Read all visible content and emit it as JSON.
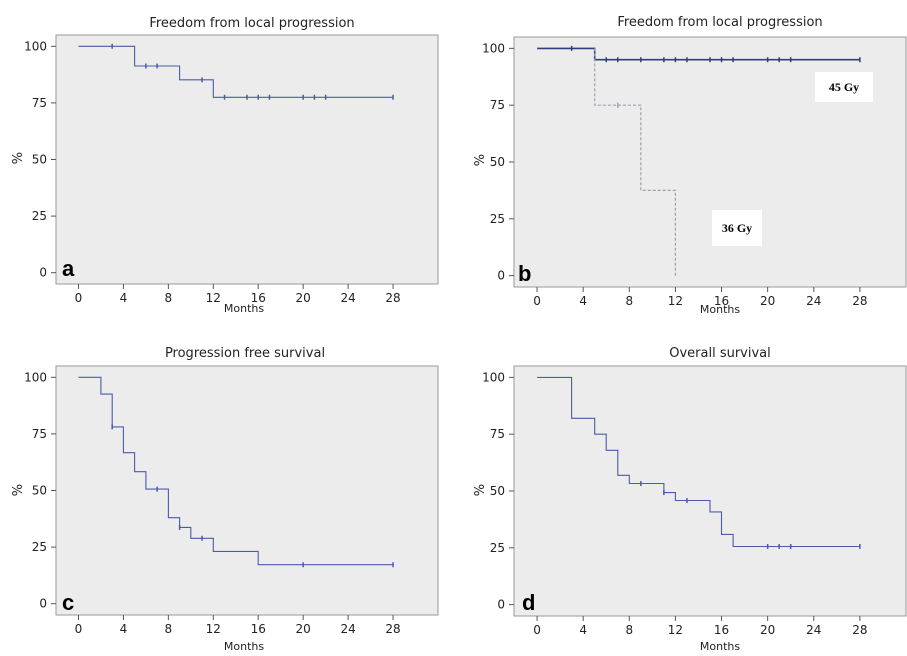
{
  "chart_data": [
    {
      "type": "line",
      "panel_label": "a",
      "title": "Freedom from local progression",
      "xlabel": "Months",
      "ylabel": "%",
      "xlim": [
        -2,
        32
      ],
      "ylim": [
        -5,
        105
      ],
      "xticks": [
        0,
        4,
        8,
        12,
        16,
        20,
        24,
        28
      ],
      "yticks": [
        0,
        25,
        50,
        75,
        100
      ],
      "grid": false,
      "series": [
        {
          "color": "#4a5ba8",
          "step": [
            [
              0,
              100
            ],
            [
              5,
              100
            ],
            [
              5,
              91.3
            ],
            [
              9,
              91.3
            ],
            [
              9,
              85.2
            ],
            [
              12,
              85.2
            ],
            [
              12,
              77.5
            ],
            [
              28,
              77.5
            ]
          ],
          "censored": [
            [
              3,
              100
            ],
            [
              6,
              91.3
            ],
            [
              7,
              91.3
            ],
            [
              11,
              85.2
            ],
            [
              13,
              77.5
            ],
            [
              15,
              77.5
            ],
            [
              16,
              77.5
            ],
            [
              17,
              77.5
            ],
            [
              20,
              77.5
            ],
            [
              21,
              77.5
            ],
            [
              22,
              77.5
            ],
            [
              28,
              77.5
            ]
          ]
        }
      ],
      "annotations": []
    },
    {
      "type": "line",
      "panel_label": "b",
      "title": "Freedom from local progression",
      "xlabel": "Months",
      "ylabel": "%",
      "xlim": [
        -2,
        32
      ],
      "ylim": [
        -5,
        105
      ],
      "xticks": [
        0,
        4,
        8,
        12,
        16,
        20,
        24,
        28
      ],
      "yticks": [
        0,
        25,
        50,
        75,
        100
      ],
      "grid": false,
      "series": [
        {
          "color": "#2f3f7a",
          "step": [
            [
              0,
              100
            ],
            [
              5,
              100
            ],
            [
              5,
              95
            ],
            [
              28,
              95
            ]
          ],
          "censored": [
            [
              3,
              100
            ],
            [
              6,
              95
            ],
            [
              7,
              95
            ],
            [
              9,
              95
            ],
            [
              11,
              95
            ],
            [
              12,
              95
            ],
            [
              13,
              95
            ],
            [
              15,
              95
            ],
            [
              16,
              95
            ],
            [
              17,
              95
            ],
            [
              20,
              95
            ],
            [
              21,
              95
            ],
            [
              22,
              95
            ],
            [
              28,
              95
            ]
          ],
          "dashed": false
        },
        {
          "color": "#9aa0ad",
          "step": [
            [
              5,
              100
            ],
            [
              5,
              75
            ],
            [
              9,
              75
            ],
            [
              9,
              37.5
            ],
            [
              12,
              37.5
            ],
            [
              12,
              0
            ]
          ],
          "censored": [
            [
              7,
              75
            ]
          ],
          "dashed": true
        }
      ],
      "annotations": [
        "45 Gy",
        "36 Gy"
      ]
    },
    {
      "type": "line",
      "panel_label": "c",
      "title": "Progression free survival",
      "xlabel": "Months",
      "ylabel": "%",
      "xlim": [
        -2,
        32
      ],
      "ylim": [
        -5,
        105
      ],
      "xticks": [
        0,
        4,
        8,
        12,
        16,
        20,
        24,
        28
      ],
      "yticks": [
        0,
        25,
        50,
        75,
        100
      ],
      "grid": false,
      "series": [
        {
          "color": "#4a5ba8",
          "step": [
            [
              0,
              100
            ],
            [
              2,
              100
            ],
            [
              2,
              92.6
            ],
            [
              3,
              92.6
            ],
            [
              3,
              78.1
            ],
            [
              4,
              78.1
            ],
            [
              4,
              66.7
            ],
            [
              5,
              66.7
            ],
            [
              5,
              58.3
            ],
            [
              6,
              58.3
            ],
            [
              6,
              50.6
            ],
            [
              8,
              50.6
            ],
            [
              8,
              38
            ],
            [
              9,
              38
            ],
            [
              9,
              33.7
            ],
            [
              10,
              33.7
            ],
            [
              10,
              28.9
            ],
            [
              12,
              28.9
            ],
            [
              12,
              23.1
            ],
            [
              16,
              23.1
            ],
            [
              16,
              17.2
            ],
            [
              28,
              17.2
            ]
          ],
          "censored": [
            [
              3,
              78.1
            ],
            [
              7,
              50.6
            ],
            [
              9,
              33.7
            ],
            [
              11,
              28.9
            ],
            [
              20,
              17.2
            ],
            [
              28,
              17.2
            ]
          ]
        }
      ],
      "annotations": []
    },
    {
      "type": "line",
      "panel_label": "d",
      "title": "Overall survival",
      "xlabel": "Months",
      "ylabel": "%",
      "xlim": [
        -2,
        32
      ],
      "ylim": [
        -5,
        105
      ],
      "xticks": [
        0,
        4,
        8,
        12,
        16,
        20,
        24,
        28
      ],
      "yticks": [
        0,
        25,
        50,
        75,
        100
      ],
      "grid": false,
      "series": [
        {
          "color": "#4a5ba8",
          "step": [
            [
              0,
              100
            ],
            [
              3,
              100
            ],
            [
              3,
              82
            ],
            [
              5,
              82
            ],
            [
              5,
              75
            ],
            [
              6,
              75
            ],
            [
              6,
              67.9
            ],
            [
              7,
              67.9
            ],
            [
              7,
              56.9
            ],
            [
              8,
              56.9
            ],
            [
              8,
              53.3
            ],
            [
              11,
              53.3
            ],
            [
              11,
              49.3
            ],
            [
              12,
              49.3
            ],
            [
              12,
              45.8
            ],
            [
              15,
              45.8
            ],
            [
              15,
              40.8
            ],
            [
              16,
              40.8
            ],
            [
              16,
              30.9
            ],
            [
              17,
              30.9
            ],
            [
              17,
              25.6
            ],
            [
              28,
              25.6
            ]
          ],
          "censored": [
            [
              9,
              53.3
            ],
            [
              11,
              49.3
            ],
            [
              13,
              45.8
            ],
            [
              20,
              25.6
            ],
            [
              21,
              25.6
            ],
            [
              22,
              25.6
            ],
            [
              28,
              25.6
            ]
          ]
        }
      ],
      "annotations": []
    }
  ]
}
